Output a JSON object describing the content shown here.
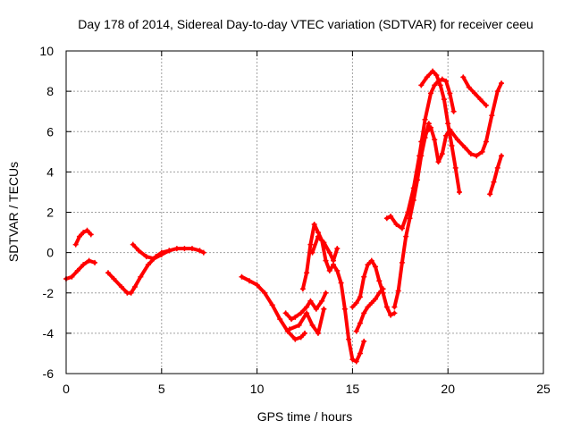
{
  "chart_data": {
    "type": "scatter",
    "title": "Day 178 of 2014, Sidereal Day-to-day VTEC variation (SDTVAR) for receiver ceeu",
    "xlabel": "GPS time / hours",
    "ylabel": "SDTVAR / TECUs",
    "xlim": [
      0,
      25
    ],
    "ylim": [
      -6,
      10
    ],
    "x_ticks": [
      0,
      5,
      10,
      15,
      20,
      25
    ],
    "y_ticks": [
      -6,
      -4,
      -2,
      0,
      2,
      4,
      6,
      8,
      10
    ],
    "x_tick_labels": [
      "0",
      "5",
      "10",
      "15",
      "20",
      "25"
    ],
    "y_tick_labels": [
      "-6",
      "-4",
      "-2",
      "0",
      "2",
      "4",
      "6",
      "8",
      "10"
    ],
    "grid": true,
    "marker": "+",
    "color": "#ff0000",
    "segments": [
      {
        "name": "seg-a",
        "x": [
          0.0,
          0.3,
          0.6,
          0.9,
          1.2,
          1.5
        ],
        "y": [
          -1.3,
          -1.2,
          -0.9,
          -0.6,
          -0.4,
          -0.5
        ]
      },
      {
        "name": "seg-b",
        "x": [
          0.5,
          0.7,
          0.9,
          1.1,
          1.3
        ],
        "y": [
          0.4,
          0.8,
          1.0,
          1.1,
          0.9
        ]
      },
      {
        "name": "seg-c",
        "x": [
          2.2,
          2.5,
          2.9,
          3.2,
          3.4,
          3.6,
          3.9,
          4.3,
          4.7,
          5.0,
          5.4
        ],
        "y": [
          -1.0,
          -1.3,
          -1.7,
          -2.0,
          -2.0,
          -1.7,
          -1.2,
          -0.6,
          -0.2,
          0.0,
          0.1
        ]
      },
      {
        "name": "seg-d",
        "x": [
          3.5,
          3.8,
          4.2,
          4.6,
          5.0,
          5.4,
          5.8,
          6.2,
          6.6,
          7.0,
          7.2
        ],
        "y": [
          0.4,
          0.1,
          -0.2,
          -0.3,
          -0.1,
          0.1,
          0.2,
          0.2,
          0.2,
          0.1,
          0.0
        ]
      },
      {
        "name": "seg-e",
        "x": [
          9.2,
          9.6,
          10.0,
          10.4,
          10.8,
          11.2,
          11.6,
          12.0,
          12.3,
          12.5
        ],
        "y": [
          -1.2,
          -1.4,
          -1.6,
          -2.0,
          -2.6,
          -3.3,
          -3.9,
          -4.3,
          -4.2,
          -4.0
        ]
      },
      {
        "name": "seg-f",
        "x": [
          11.5,
          11.8,
          12.0,
          12.3,
          12.6,
          12.8,
          13.1,
          13.4,
          13.6
        ],
        "y": [
          -3.0,
          -3.3,
          -3.2,
          -3.0,
          -2.7,
          -2.4,
          -2.8,
          -2.4,
          -2.0
        ]
      },
      {
        "name": "seg-g",
        "x": [
          11.7,
          12.2,
          12.6,
          12.9,
          13.2,
          13.5
        ],
        "y": [
          -3.8,
          -3.6,
          -3.0,
          -3.6,
          -4.0,
          -2.8
        ]
      },
      {
        "name": "seg-h",
        "x": [
          12.4,
          12.6,
          12.8,
          13.0,
          13.2,
          13.4,
          13.6,
          13.8,
          14.0,
          14.2,
          14.4,
          14.6,
          14.8,
          15.0,
          15.2,
          15.4,
          15.6
        ],
        "y": [
          -1.8,
          -1.0,
          0.4,
          1.4,
          1.0,
          0.6,
          -0.4,
          -0.9,
          -0.6,
          -0.9,
          -1.5,
          -2.8,
          -4.3,
          -5.3,
          -5.4,
          -5.0,
          -4.4
        ]
      },
      {
        "name": "seg-i",
        "x": [
          12.9,
          13.2,
          13.5,
          13.8,
          14.0,
          14.2
        ],
        "y": [
          0.0,
          0.8,
          0.5,
          0.0,
          -0.4,
          0.2
        ]
      },
      {
        "name": "seg-j",
        "x": [
          15.0,
          15.2,
          15.4,
          15.6,
          15.8,
          16.0,
          16.2,
          16.4,
          16.6,
          16.8,
          17.0,
          17.2
        ],
        "y": [
          -2.7,
          -2.5,
          -2.2,
          -1.2,
          -0.6,
          -0.4,
          -0.7,
          -1.4,
          -2.0,
          -2.7,
          -3.1,
          -3.0
        ]
      },
      {
        "name": "seg-k",
        "x": [
          15.2,
          15.4,
          15.6,
          15.8,
          16.0,
          16.2,
          16.4,
          16.6
        ],
        "y": [
          -3.9,
          -3.5,
          -3.0,
          -2.7,
          -2.5,
          -2.3,
          -2.0,
          -1.8
        ]
      },
      {
        "name": "seg-l",
        "x": [
          16.8,
          17.0,
          17.3,
          17.6,
          17.9,
          18.2,
          18.5,
          18.8,
          19.1,
          19.3,
          19.5,
          19.7,
          19.9,
          20.1,
          20.3
        ],
        "y": [
          1.7,
          1.8,
          1.4,
          1.2,
          2.0,
          3.2,
          4.8,
          6.6,
          7.9,
          8.3,
          8.5,
          8.6,
          8.5,
          7.9,
          7.0
        ]
      },
      {
        "name": "seg-m",
        "x": [
          17.2,
          17.4,
          17.6,
          17.8,
          18.0,
          18.2,
          18.4,
          18.6,
          18.8,
          19.0
        ],
        "y": [
          -2.7,
          -1.9,
          -0.5,
          0.8,
          1.7,
          2.6,
          3.6,
          4.8,
          5.7,
          6.4
        ]
      },
      {
        "name": "seg-n",
        "x": [
          18.6,
          18.9,
          19.2,
          19.4,
          19.6,
          19.8,
          20.0,
          20.2,
          20.4,
          20.6
        ],
        "y": [
          8.3,
          8.7,
          9.0,
          8.8,
          8.3,
          7.6,
          6.4,
          5.3,
          4.2,
          3.0
        ]
      },
      {
        "name": "seg-o",
        "x": [
          18.6,
          18.9,
          19.1,
          19.3,
          19.5,
          19.7,
          19.9,
          20.1,
          20.5,
          20.9,
          21.2,
          21.5,
          21.8,
          22.0,
          22.3,
          22.6,
          22.8
        ],
        "y": [
          5.5,
          6.0,
          6.2,
          5.6,
          4.5,
          4.9,
          5.8,
          6.1,
          5.6,
          5.2,
          4.9,
          4.8,
          5.0,
          5.5,
          6.8,
          8.0,
          8.4
        ]
      },
      {
        "name": "seg-p",
        "x": [
          20.8,
          21.1,
          21.4,
          21.7,
          22.0
        ],
        "y": [
          8.7,
          8.2,
          7.9,
          7.6,
          7.3
        ]
      },
      {
        "name": "seg-q",
        "x": [
          22.2,
          22.4,
          22.6,
          22.8
        ],
        "y": [
          2.9,
          3.5,
          4.2,
          4.8
        ]
      }
    ]
  }
}
